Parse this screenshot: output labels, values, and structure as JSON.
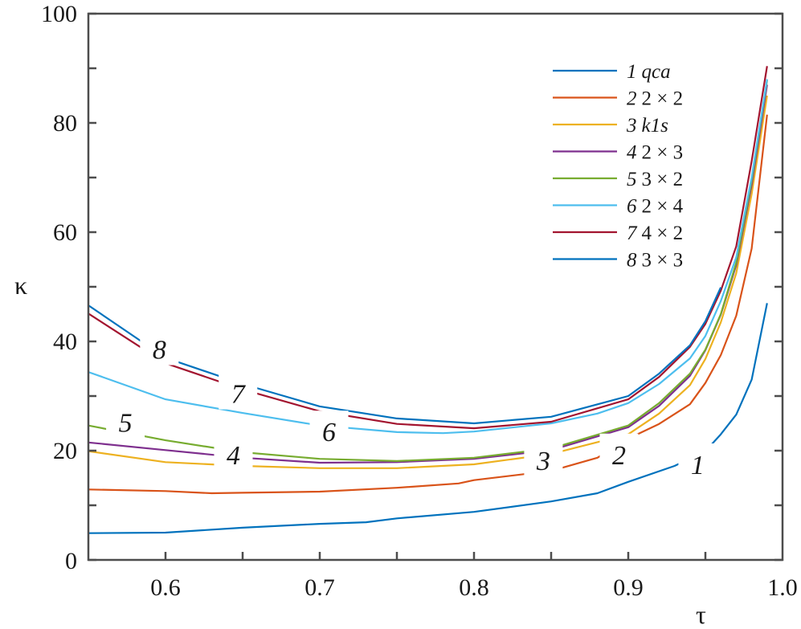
{
  "chart_data": {
    "type": "line",
    "title": "",
    "xlabel": "τ",
    "ylabel": "κ",
    "xlim": [
      0.55,
      1.0
    ],
    "ylim": [
      0,
      100
    ],
    "xticks": [
      0.6,
      0.7,
      0.8,
      0.9,
      1.0
    ],
    "xtick_labels": [
      "0.6",
      "0.7",
      "0.8",
      "0.9",
      "1.0"
    ],
    "yticks": [
      0,
      20,
      40,
      60,
      80,
      100
    ],
    "ytick_labels": [
      "0",
      "20",
      "40",
      "60",
      "80",
      "100"
    ],
    "grid": false,
    "legend_position": "top-right",
    "series": [
      {
        "name": "1 qca",
        "num": "1",
        "label": "qca",
        "color": "#0072BD",
        "x": [
          0.55,
          0.6,
          0.65,
          0.7,
          0.73,
          0.75,
          0.8,
          0.85,
          0.88,
          0.9,
          0.93,
          0.95,
          0.96,
          0.97,
          0.98,
          0.99
        ],
        "y": [
          4.9,
          5.0,
          5.9,
          6.6,
          6.9,
          7.6,
          8.8,
          10.7,
          12.2,
          14.3,
          17.2,
          19.9,
          23,
          26.6,
          33,
          47
        ]
      },
      {
        "name": "2 2 × 2",
        "num": "2",
        "label": "2 × 2",
        "color": "#D95319",
        "x": [
          0.55,
          0.6,
          0.63,
          0.65,
          0.7,
          0.75,
          0.79,
          0.8,
          0.85,
          0.88,
          0.9,
          0.92,
          0.94,
          0.95,
          0.96,
          0.97,
          0.98,
          0.99
        ],
        "y": [
          12.9,
          12.6,
          12.2,
          12.3,
          12.5,
          13.2,
          14,
          14.6,
          16.3,
          18.7,
          22.2,
          24.9,
          28.5,
          32.4,
          37.5,
          44.7,
          57,
          81.5
        ]
      },
      {
        "name": "3 k1s",
        "num": "3",
        "label": "k1s",
        "color": "#EDB120",
        "x": [
          0.55,
          0.6,
          0.65,
          0.7,
          0.75,
          0.8,
          0.85,
          0.9,
          0.92,
          0.94,
          0.95,
          0.96,
          0.97,
          0.98,
          0.99
        ],
        "y": [
          19.9,
          17.9,
          17.2,
          16.8,
          16.8,
          17.5,
          19.4,
          23,
          26.8,
          32,
          36.8,
          43.5,
          52.5,
          67,
          85
        ]
      },
      {
        "name": "4 2 × 3",
        "num": "4",
        "label": "2 × 3",
        "color": "#7E2F8E",
        "x": [
          0.55,
          0.6,
          0.65,
          0.7,
          0.75,
          0.8,
          0.85,
          0.9,
          0.92,
          0.94,
          0.95,
          0.96,
          0.97,
          0.98,
          0.99
        ],
        "y": [
          21.5,
          20.1,
          18.7,
          17.8,
          17.9,
          18.5,
          20.1,
          24.3,
          28.2,
          33.7,
          38.4,
          44.9,
          54,
          68.7,
          87
        ]
      },
      {
        "name": "5 3 × 2",
        "num": "5",
        "label": "3 × 2",
        "color": "#77AC30",
        "x": [
          0.55,
          0.6,
          0.65,
          0.7,
          0.75,
          0.8,
          0.85,
          0.9,
          0.92,
          0.94,
          0.95,
          0.96,
          0.97,
          0.98,
          0.99
        ],
        "y": [
          24.6,
          21.9,
          19.7,
          18.5,
          18.1,
          18.7,
          20.4,
          24.6,
          28.7,
          34.1,
          38.5,
          45,
          54.4,
          69.4,
          87.8
        ]
      },
      {
        "name": "6 2 × 4",
        "num": "6",
        "label": "2 × 4",
        "color": "#4DBEEE",
        "x": [
          0.55,
          0.6,
          0.65,
          0.7,
          0.75,
          0.78,
          0.8,
          0.85,
          0.88,
          0.9,
          0.92,
          0.94,
          0.95,
          0.96,
          0.97,
          0.98,
          0.99
        ],
        "y": [
          34.4,
          29.4,
          26.9,
          24.6,
          23.4,
          23.2,
          23.5,
          25,
          26.8,
          28.7,
          32.2,
          36.9,
          41,
          47.4,
          55.4,
          70,
          88
        ]
      },
      {
        "name": "7 4 × 2",
        "num": "7",
        "label": "4 × 2",
        "color": "#A2142F",
        "x": [
          0.55,
          0.6,
          0.65,
          0.7,
          0.75,
          0.8,
          0.85,
          0.9,
          0.92,
          0.94,
          0.95,
          0.96,
          0.97,
          0.98,
          0.99
        ],
        "y": [
          45.1,
          36,
          31.2,
          27.2,
          24.9,
          24.1,
          25.3,
          29.4,
          33.5,
          39,
          43.2,
          49.3,
          57.4,
          73,
          90.4
        ]
      },
      {
        "name": "8 3 × 3",
        "num": "8",
        "label": "3 × 3",
        "color": "#0072BD",
        "x": [
          0.55,
          0.6,
          0.65,
          0.7,
          0.75,
          0.8,
          0.85,
          0.9,
          0.92,
          0.94,
          0.95,
          0.96
        ],
        "y": [
          46.6,
          37,
          32.2,
          28.1,
          25.9,
          25,
          26.2,
          30,
          34.1,
          39.3,
          43.7,
          49.9
        ]
      }
    ],
    "annotations": [
      {
        "text": "1",
        "x": 0.945,
        "y": 17.5
      },
      {
        "text": "2",
        "x": 0.894,
        "y": 19.3
      },
      {
        "text": "3",
        "x": 0.845,
        "y": 18.2
      },
      {
        "text": "4",
        "x": 0.644,
        "y": 19.3
      },
      {
        "text": "5",
        "x": 0.574,
        "y": 25.2
      },
      {
        "text": "6",
        "x": 0.706,
        "y": 23.5
      },
      {
        "text": "7",
        "x": 0.647,
        "y": 30.5
      },
      {
        "text": "8",
        "x": 0.596,
        "y": 38.6
      }
    ]
  }
}
